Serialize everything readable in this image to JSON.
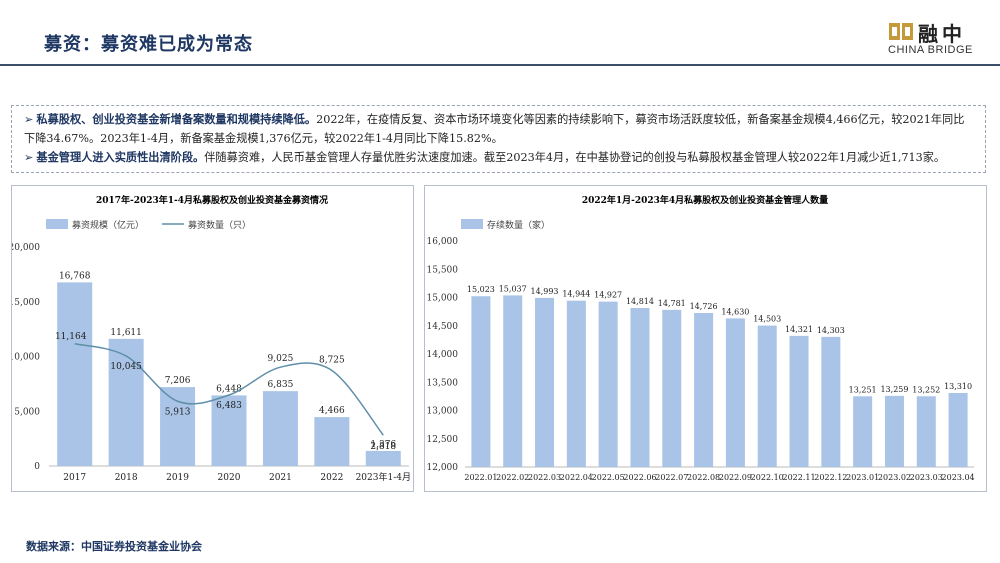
{
  "header": {
    "title": "募资：募资难已成为常态",
    "logo_cn": "融中",
    "logo_en": "CHINA BRIDGE"
  },
  "summary": {
    "bullets": [
      {
        "mark": "➢",
        "bold": "私募股权、创业投资基金新增备案数量和规模持续降低。",
        "text": "2022年，在疫情反复、资本市场环境变化等因素的持续影响下，募资市场活跃度较低，新备案基金规模4,466亿元，较2021年同比下降34.67%。2023年1-4月，新备案基金规模1,376亿元，较2022年1-4月同比下降15.82%。"
      },
      {
        "mark": "➢",
        "bold": "基金管理人进入实质性出清阶段。",
        "text": "伴随募资难，人民币基金管理人存量优胜劣汰速度加速。截至2023年4月，在中基协登记的创投与私募股权基金管理人较2022年1月减少近1,713家。"
      }
    ]
  },
  "chart_data": [
    {
      "type": "bar",
      "title": "2017年-2023年1-4月私募股权及创业投资基金募资情况",
      "categories": [
        "2017",
        "2018",
        "2019",
        "2020",
        "2021",
        "2022",
        "2023年1-4月"
      ],
      "series": [
        {
          "name": "募资规模（亿元）",
          "type": "bar",
          "values": [
            16768,
            11611,
            7206,
            6448,
            6835,
            4466,
            1376
          ],
          "labels": [
            "16,768",
            "11,611",
            "7,206",
            "6,448",
            "6,835",
            "4,466",
            "1,376"
          ]
        },
        {
          "name": "募资数量（只）",
          "type": "line",
          "values": [
            11164,
            10045,
            5913,
            6483,
            9025,
            8725,
            2818
          ],
          "labels": [
            "11,164",
            "10,045",
            "5,913",
            "6,483",
            "9,025",
            "8,725",
            "2,818"
          ]
        }
      ],
      "yticks": [
        "0",
        "5,000",
        "10,000",
        "15,000",
        "20,000"
      ],
      "ylim": [
        0,
        20000
      ],
      "legend_position": "top-left",
      "colors": {
        "bar": "#a9c4e6",
        "line": "#5f8fa8"
      }
    },
    {
      "type": "bar",
      "title": "2022年1月-2023年4月私募股权及创业投资基金管理人数量",
      "categories": [
        "2022.01",
        "2022.02",
        "2022.03",
        "2022.04",
        "2022.05",
        "2022.06",
        "2022.07",
        "2022.08",
        "2022.09",
        "2022.10",
        "2022.11",
        "2022.12",
        "2023.01",
        "2023.02",
        "2023.03",
        "2023.04"
      ],
      "series": [
        {
          "name": "存续数量（家）",
          "values": [
            15023,
            15037,
            14993,
            14944,
            14927,
            14814,
            14781,
            14726,
            14630,
            14503,
            14321,
            14303,
            13251,
            13259,
            13252,
            13310
          ],
          "labels": [
            "15,023",
            "15,037",
            "14,993",
            "14,944",
            "14,927",
            "14,814",
            "14,781",
            "14,726",
            "14,630",
            "14,503",
            "14,321",
            "14,303",
            "13,251",
            "13,259",
            "13,252",
            "13,310"
          ]
        }
      ],
      "yticks": [
        "12,000",
        "12,500",
        "13,000",
        "13,500",
        "14,000",
        "14,500",
        "15,000",
        "15,500",
        "16,000"
      ],
      "ylim": [
        12000,
        16000
      ],
      "legend_position": "top-left",
      "colors": {
        "bar": "#a9c4e6"
      }
    }
  ],
  "footer": {
    "source": "数据来源：中国证券投资基金业协会"
  }
}
